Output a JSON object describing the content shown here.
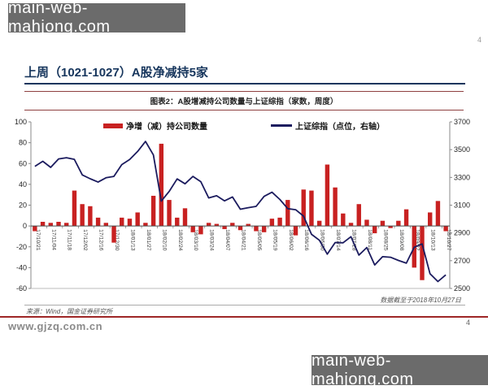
{
  "watermarks": {
    "top": "main-web-mahjong.com",
    "bottom": "main-web-mahjong.com"
  },
  "header": {
    "title": "上周（1021-1027）A股净减持5家",
    "page_number_top": "4"
  },
  "figure": {
    "caption": "图表2：A股增减持公司数量与上证综指（家数，周度）"
  },
  "legend": {
    "bar_label": "净增（减）持公司数量",
    "line_label": "上证综指（点位，右轴）"
  },
  "footer": {
    "data_note": "数据截至于2018年10月27日",
    "source": "来源：Wind，国金证券研究所",
    "url": "www.gjzq.com.cn",
    "page_number": "4"
  },
  "colors": {
    "bar": "#c82121",
    "line": "#1b1b5e",
    "title_navy": "#17365d",
    "caption_border": "#8f4040",
    "bottom_red_rule": "#9e2626",
    "watermark_bg": "#6b6b6b"
  },
  "chart_data": {
    "type": "bar+line combo, weekly",
    "title": "A股增减持公司数量与上证综指（家数，周度）",
    "x_label_interval": 2,
    "categories": [
      "17/10/21",
      "17/10/28",
      "17/11/04",
      "17/11/11",
      "17/11/18",
      "17/11/25",
      "17/12/02",
      "17/12/09",
      "17/12/16",
      "17/12/23",
      "17/12/30",
      "18/01/06",
      "18/01/13",
      "18/01/20",
      "18/01/27",
      "18/02/03",
      "18/02/10",
      "18/02/17",
      "18/02/24",
      "18/03/03",
      "18/03/10",
      "18/03/17",
      "18/03/24",
      "18/03/31",
      "18/04/07",
      "18/04/14",
      "18/04/21",
      "18/04/28",
      "18/05/05",
      "18/05/12",
      "18/05/19",
      "18/05/26",
      "18/06/02",
      "18/06/09",
      "18/06/16",
      "18/06/23",
      "18/06/30",
      "18/07/07",
      "18/07/14",
      "18/07/21",
      "18/07/28",
      "18/08/04",
      "18/08/11",
      "18/08/18",
      "18/08/25",
      "18/09/01",
      "18/09/08",
      "18/09/15",
      "18/09/22",
      "18/09/29",
      "18/10/13",
      "18/10/20",
      "18/10/27"
    ],
    "series": [
      {
        "name": "净增（减）持公司数量",
        "type": "bar",
        "axis": "left",
        "values": [
          -5,
          4,
          3,
          4,
          3,
          34,
          21,
          19,
          8,
          3,
          -16,
          8,
          7,
          13,
          3,
          29,
          79,
          25,
          8,
          17,
          -6,
          -8,
          3,
          2,
          -3,
          3,
          -4,
          2,
          -5,
          -6,
          7,
          8,
          25,
          -9,
          35,
          34,
          5,
          59,
          37,
          12,
          3,
          21,
          6,
          -7,
          5,
          -2,
          5,
          16,
          -40,
          -52,
          13,
          24,
          -5
        ]
      },
      {
        "name": "上证综指（点位，右轴）",
        "type": "line",
        "axis": "right",
        "values": [
          3380,
          3416,
          3372,
          3433,
          3442,
          3430,
          3318,
          3290,
          3266,
          3297,
          3307,
          3392,
          3429,
          3487,
          3559,
          3462,
          3129,
          3199,
          3289,
          3254,
          3307,
          3269,
          3152,
          3168,
          3131,
          3159,
          3071,
          3082,
          3091,
          3163,
          3193,
          3141,
          3075,
          3067,
          3021,
          2890,
          2847,
          2747,
          2831,
          2829,
          2873,
          2740,
          2795,
          2669,
          2729,
          2725,
          2702,
          2682,
          2797,
          2821,
          2606,
          2550,
          2598
        ]
      }
    ],
    "left_axis": {
      "min": -60,
      "max": 100,
      "ticks": [
        100,
        80,
        60,
        40,
        20,
        0,
        -20,
        -40,
        -60
      ]
    },
    "right_axis": {
      "min": 2500,
      "max": 3700,
      "ticks": [
        3700,
        3500,
        3300,
        3100,
        2900,
        2700,
        2500
      ]
    },
    "grid": "off",
    "legend_position": "top-center"
  }
}
